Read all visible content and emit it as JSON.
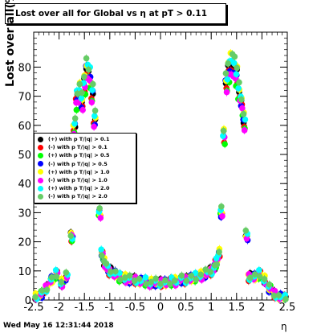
{
  "chart_data": {
    "type": "scatter",
    "title": "Lost over all for Global vs   η at pT > 0.11",
    "xlabel": "η",
    "ylabel": "Lost over all(%)",
    "xlim": [
      -2.5,
      2.5
    ],
    "ylim": [
      0,
      92
    ],
    "xticks": [
      "-2.5",
      "-2",
      "-1.5",
      "-1",
      "-0.5",
      "0",
      "0.5",
      "1",
      "1.5",
      "2",
      "2.5"
    ],
    "yticks": [
      "0",
      "10",
      "20",
      "30",
      "40",
      "50",
      "60",
      "70",
      "80"
    ],
    "grid": false,
    "legend_position": "left-middle",
    "timestamp": "Wed May 16 12:31:44 2018",
    "series": [
      {
        "name": "(+) with p T/|q| > 0.1",
        "color": "#000000",
        "scale": 1.0
      },
      {
        "name": "(-) with p T/|q| > 0.1",
        "color": "#ff0000",
        "scale": 0.97
      },
      {
        "name": "(+) with p T/|q| > 0.5",
        "color": "#00ff00",
        "scale": 0.95
      },
      {
        "name": "(-) with p T/|q| > 0.5",
        "color": "#0000ff",
        "scale": 0.99
      },
      {
        "name": "(+) with p T/|q| > 1.0",
        "color": "#ffff00",
        "scale": 1.02
      },
      {
        "name": "(-) with p T/|q| > 1.0",
        "color": "#ff00ff",
        "scale": 0.96
      },
      {
        "name": "(+) with p T/|q| > 2.0",
        "color": "#00ffff",
        "scale": 1.01
      },
      {
        "name": "(-) with p T/|q| > 2.0",
        "color": "#66cc66",
        "scale": 1.03
      }
    ],
    "base_curve": {
      "x": [
        -2.45,
        -2.35,
        -2.25,
        -2.15,
        -2.05,
        -1.95,
        -1.85,
        -1.75,
        -1.7,
        -1.65,
        -1.6,
        -1.55,
        -1.5,
        -1.45,
        -1.4,
        -1.35,
        -1.3,
        -1.25,
        -1.2,
        -1.15,
        -1.1,
        -1.05,
        -1.0,
        -0.9,
        -0.8,
        -0.7,
        -0.6,
        -0.5,
        -0.4,
        -0.3,
        -0.2,
        -0.1,
        0.0,
        0.1,
        0.2,
        0.3,
        0.4,
        0.5,
        0.6,
        0.7,
        0.8,
        0.9,
        1.0,
        1.05,
        1.1,
        1.15,
        1.2,
        1.25,
        1.3,
        1.35,
        1.4,
        1.45,
        1.5,
        1.55,
        1.6,
        1.65,
        1.7,
        1.75,
        1.85,
        1.95,
        2.05,
        2.15,
        2.25,
        2.35,
        2.45
      ],
      "y": [
        1,
        2,
        4,
        7,
        9,
        6,
        8,
        22,
        60,
        70,
        72,
        68,
        75,
        80,
        78,
        72,
        62,
        50,
        30,
        16,
        13,
        11,
        10,
        9,
        8,
        7.5,
        7,
        7,
        6.5,
        6.5,
        6,
        6,
        6,
        6,
        6.5,
        6.5,
        7,
        7,
        7.5,
        8,
        8.5,
        9,
        10,
        11,
        13,
        16,
        30,
        57,
        75,
        80,
        82,
        80,
        78,
        72,
        68,
        62,
        22,
        8,
        8,
        9,
        7,
        4,
        2,
        1,
        0.5
      ]
    }
  }
}
